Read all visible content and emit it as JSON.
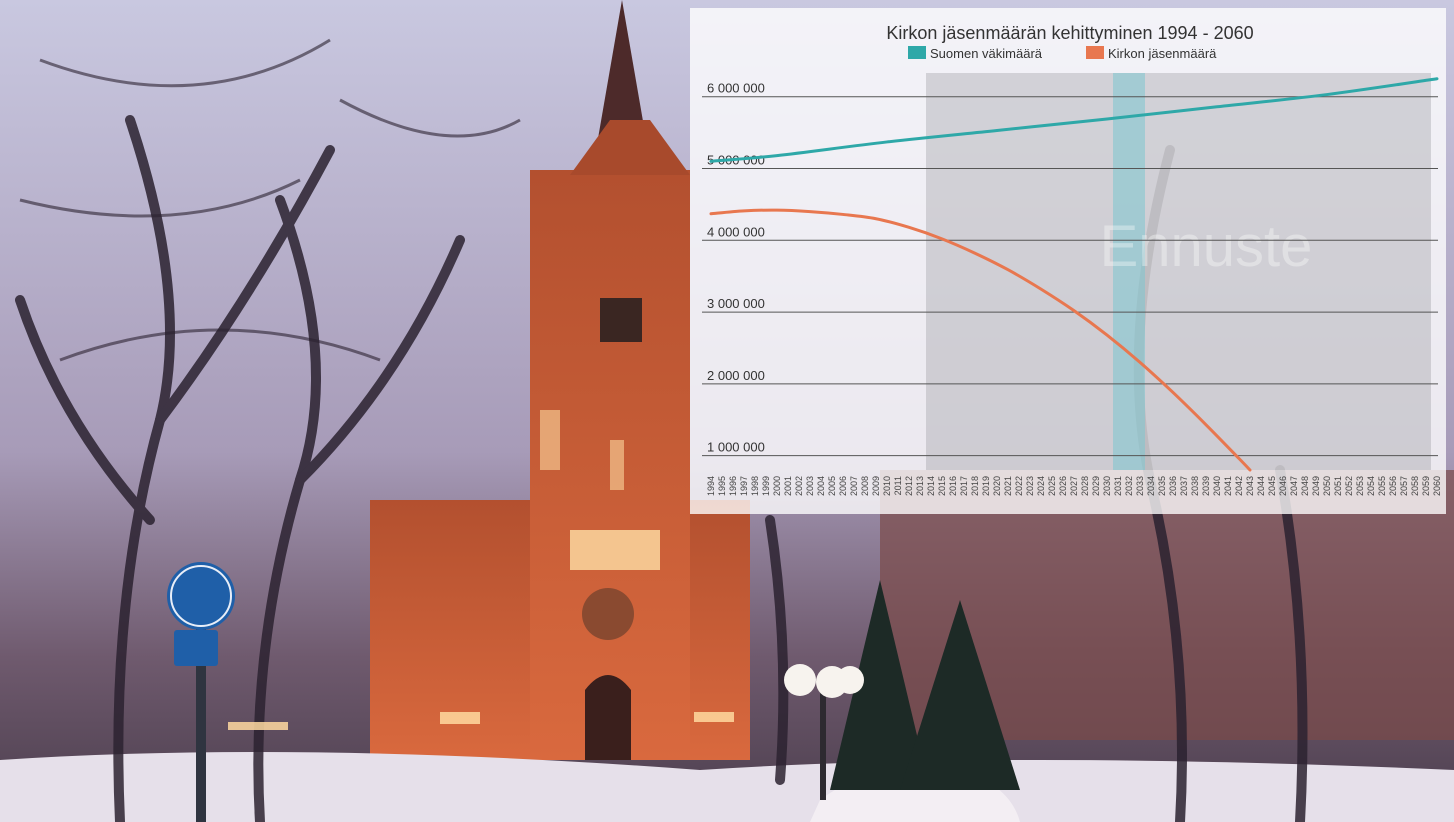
{
  "colors": {
    "population": "#2ea8a8",
    "members": "#e8774f",
    "forecast_band": "#8e8e94",
    "highlight_band": "#7cc6cf",
    "gridline": "#555555"
  },
  "scene": {
    "photo_subject": "brick-church-tower-at-dusk-in-snow",
    "icons": [
      "church-icon",
      "bicycle-sign-icon",
      "street-lamp-icon"
    ]
  },
  "chart_data": {
    "type": "line",
    "title": "Kirkon jäsenmäärän kehittyminen 1994 - 2060",
    "legend": {
      "placement": "top",
      "entries": [
        "Suomen väkimäärä",
        "Kirkon jäsenmäärä"
      ]
    },
    "forecast_label": "Ennuste",
    "forecast_start": 2014,
    "highlight_range": [
      2031,
      2033
    ],
    "x_start": 1994,
    "x_end": 2060,
    "x_tick_labels": [
      "1994",
      "1995",
      "1996",
      "1997",
      "1998",
      "1999",
      "2000",
      "2001",
      "2002",
      "2003",
      "2004",
      "2005",
      "2006",
      "2007",
      "2008",
      "2009",
      "2010",
      "2011",
      "2012",
      "2013",
      "2014",
      "2015",
      "2016",
      "2017",
      "2018",
      "2019",
      "2020",
      "2021",
      "2022",
      "2023",
      "2024",
      "2025",
      "2026",
      "2027",
      "2028",
      "2029",
      "2030",
      "2031",
      "2032",
      "2033",
      "2034",
      "2035",
      "2036",
      "2037",
      "2038",
      "2039",
      "2040",
      "2041",
      "2042",
      "2043",
      "2044",
      "2045",
      "2046",
      "2047",
      "2048",
      "2049",
      "2050",
      "2051",
      "2052",
      "2053",
      "2054",
      "2055",
      "2056",
      "2057",
      "2058",
      "2059",
      "2060"
    ],
    "y_ticks": [
      1000000,
      2000000,
      3000000,
      4000000,
      5000000,
      6000000
    ],
    "y_tick_labels": [
      "1 000 000",
      "2 000 000",
      "3 000 000",
      "4 000 000",
      "5 000 000",
      "6 000 000"
    ],
    "ylim": [
      800000,
      6400000
    ],
    "grid": true,
    "series": [
      {
        "name": "Suomen väkimäärä",
        "x": [
          1994,
          2000,
          2010,
          2020,
          2030,
          2040,
          2050,
          2060
        ],
        "values": [
          5100000,
          5180000,
          5370000,
          5530000,
          5690000,
          5860000,
          6030000,
          6250000
        ]
      },
      {
        "name": "Kirkon jäsenmäärä",
        "x": [
          1994,
          1997,
          2000,
          2003,
          2006,
          2009,
          2012,
          2015,
          2018,
          2021,
          2024,
          2027,
          2030,
          2033,
          2036,
          2039,
          2042,
          2043
        ],
        "values": [
          4370000,
          4410000,
          4420000,
          4400000,
          4360000,
          4300000,
          4180000,
          4020000,
          3820000,
          3590000,
          3320000,
          3020000,
          2680000,
          2300000,
          1880000,
          1430000,
          960000,
          800000
        ]
      }
    ]
  }
}
